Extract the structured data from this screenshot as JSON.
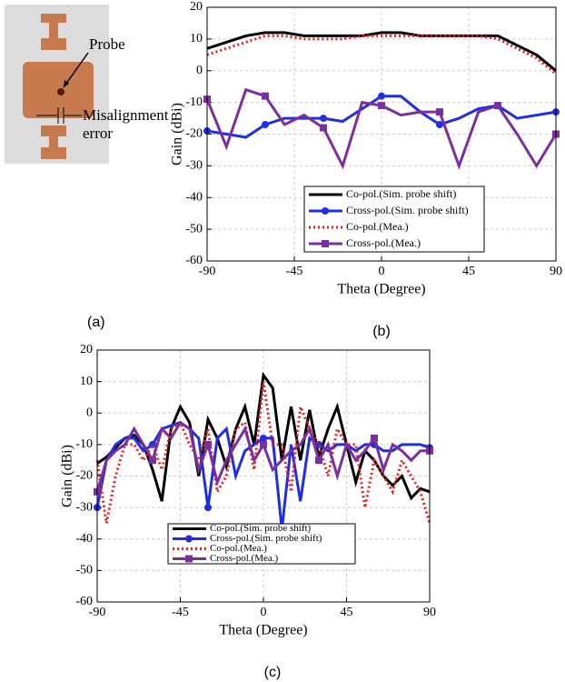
{
  "figure_a": {
    "label": "(a)",
    "annotations": [
      "Probe",
      "Misalignment",
      "error"
    ]
  },
  "chart_data": [
    {
      "type": "line",
      "label": "(b)",
      "xlabel": "Theta (Degree)",
      "ylabel": "Gain (dBi)",
      "xlim": [
        -90,
        90
      ],
      "xticks": [
        -90,
        -45,
        0,
        45,
        90
      ],
      "ylim": [
        -60,
        20
      ],
      "yticks": [
        -60,
        -50,
        -40,
        -30,
        -20,
        -10,
        0,
        10,
        20
      ],
      "grid": true,
      "x": [
        -90,
        -80,
        -70,
        -60,
        -50,
        -40,
        -30,
        -20,
        -10,
        0,
        10,
        20,
        30,
        40,
        50,
        60,
        70,
        80,
        90
      ],
      "series": [
        {
          "name": "Co-pol.(Sim. probe shift)",
          "color": "#000000",
          "values": [
            7,
            9,
            11,
            12,
            12,
            11,
            11,
            11,
            11,
            12,
            12,
            11,
            11,
            11,
            11,
            11,
            8,
            5,
            0
          ]
        },
        {
          "name": "Cross-pol.(Sim. probe shift)",
          "color": "#1f2ee6",
          "marker": "circle",
          "values": [
            -19,
            -20,
            -21,
            -17,
            -15,
            -15,
            -15,
            -16,
            -12,
            -8,
            -8,
            -13,
            -17,
            -15,
            -12,
            -11,
            -15,
            -14,
            -13
          ]
        },
        {
          "name": "Co-pol.(Mea.)",
          "color": "#e0201b",
          "dash": true,
          "values": [
            5,
            7,
            9,
            11,
            11,
            10,
            10,
            10,
            11,
            11,
            11,
            11,
            11,
            11,
            11,
            10,
            7,
            4,
            -1
          ]
        },
        {
          "name": "Cross-pol.(Mea.)",
          "color": "#7b2f9e",
          "marker": "square",
          "values": [
            -9,
            -24,
            -6,
            -8,
            -17,
            -14,
            -18,
            -30,
            -10,
            -11,
            -14,
            -13,
            -13,
            -30,
            -13,
            -11,
            -20,
            -30,
            -20
          ]
        }
      ]
    },
    {
      "type": "line",
      "label": "(c)",
      "xlabel": "Theta (Degree)",
      "ylabel": "Gain (dBi)",
      "xlim": [
        -90,
        90
      ],
      "xticks": [
        -90,
        -45,
        0,
        45,
        90
      ],
      "ylim": [
        -60,
        20
      ],
      "yticks": [
        -60,
        -50,
        -40,
        -30,
        -20,
        -10,
        0,
        10,
        20
      ],
      "grid": true,
      "x": [
        -90,
        -85,
        -80,
        -75,
        -70,
        -65,
        -60,
        -55,
        -50,
        -45,
        -40,
        -35,
        -30,
        -25,
        -20,
        -15,
        -10,
        -5,
        0,
        5,
        10,
        15,
        20,
        25,
        30,
        35,
        40,
        45,
        50,
        55,
        60,
        65,
        70,
        75,
        80,
        85,
        90
      ],
      "series": [
        {
          "name": "Co-pol.(Sim. probe shift)",
          "color": "#000000",
          "values": [
            -16,
            -14,
            -11,
            -8,
            -7,
            -10,
            -18,
            -28,
            -5,
            2,
            -3,
            -20,
            -2,
            -8,
            -17,
            -5,
            2,
            -10,
            12,
            8,
            -15,
            2,
            -15,
            1,
            -14,
            -5,
            2,
            -10,
            -22,
            -12,
            -15,
            -20,
            -23,
            -20,
            -27,
            -24,
            -25
          ]
        },
        {
          "name": "Cross-pol.(Sim. probe shift)",
          "color": "#1f2ee6",
          "marker": "circle",
          "values": [
            -30,
            -15,
            -10,
            -8,
            -8,
            -12,
            -10,
            -5,
            -4,
            -3,
            -5,
            -8,
            -30,
            -8,
            -5,
            -20,
            -12,
            -10,
            -8,
            -8,
            -37,
            -10,
            -28,
            -8,
            -10,
            -12,
            -10,
            -10,
            -12,
            -10,
            -10,
            -12,
            -12,
            -10,
            -10,
            -10,
            -11
          ]
        },
        {
          "name": "Co-pol.(Mea.)",
          "color": "#e0201b",
          "dash": true,
          "values": [
            -15,
            -35,
            -20,
            -10,
            -10,
            -15,
            -10,
            -18,
            -5,
            -3,
            -10,
            -15,
            -5,
            -25,
            -20,
            -5,
            -3,
            -18,
            10,
            -10,
            -10,
            -25,
            2,
            -5,
            -10,
            -20,
            -5,
            -10,
            -10,
            -30,
            -15,
            -20,
            -25,
            -15,
            -20,
            -25,
            -35
          ]
        },
        {
          "name": "Cross-pol.(Mea.)",
          "color": "#7b2f9e",
          "marker": "square",
          "values": [
            -25,
            -15,
            -12,
            -10,
            -5,
            -10,
            -15,
            -5,
            -8,
            -3,
            -5,
            -18,
            -10,
            -22,
            -15,
            -10,
            -5,
            -15,
            -10,
            -18,
            -15,
            -12,
            -10,
            -5,
            -15,
            -10,
            -20,
            -10,
            -15,
            -12,
            -8,
            -18,
            -10,
            -12,
            -15,
            -12,
            -12
          ]
        }
      ]
    }
  ]
}
